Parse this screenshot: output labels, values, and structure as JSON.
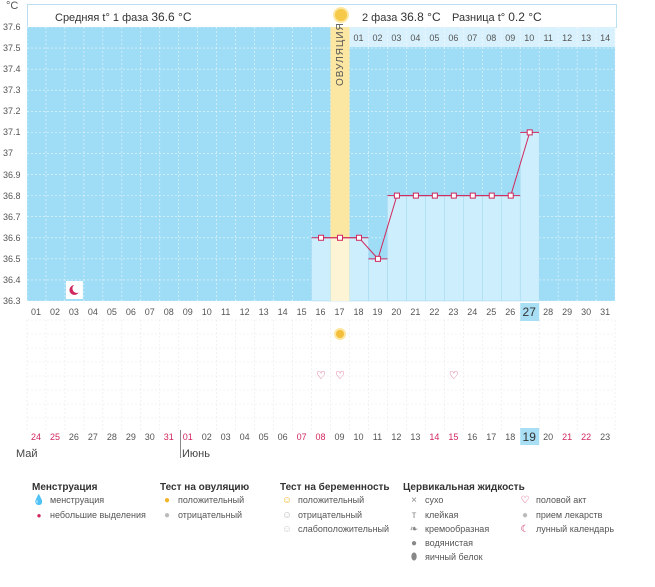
{
  "header": {
    "phase1_label": "Средняя t° 1 фаза",
    "phase1_value": "36.6 °C",
    "phase2_label": "2 фаза",
    "phase2_value": "36.8 °C",
    "diff_label": "Разница t°",
    "diff_value": "0.2 °C"
  },
  "unit": "°C",
  "ovulation_label": "ОВУЛЯЦИЯ",
  "post_ovulation_days": [
    "01",
    "02",
    "03",
    "04",
    "05",
    "06",
    "07",
    "08",
    "09",
    "10",
    "11",
    "12",
    "13",
    "14"
  ],
  "cycle_days": [
    "01",
    "02",
    "03",
    "04",
    "05",
    "06",
    "07",
    "08",
    "09",
    "10",
    "11",
    "12",
    "13",
    "14",
    "15",
    "16",
    "17",
    "18",
    "19",
    "20",
    "21",
    "22",
    "23",
    "24",
    "25",
    "26",
    "27",
    "28",
    "29",
    "30",
    "31"
  ],
  "current_cycle_day": "27",
  "calendar_dates": [
    "24",
    "25",
    "26",
    "27",
    "28",
    "29",
    "30",
    "31",
    "01",
    "02",
    "03",
    "04",
    "05",
    "06",
    "07",
    "08",
    "09",
    "10",
    "11",
    "12",
    "13",
    "14",
    "15",
    "16",
    "17",
    "18",
    "19",
    "20",
    "21",
    "22",
    "23"
  ],
  "calendar_red": [
    0,
    1,
    7,
    8,
    14,
    15,
    21,
    22,
    28,
    29
  ],
  "current_calendar_date": "19",
  "months": {
    "may": "Май",
    "june": "Июнь"
  },
  "colors": {
    "chart_bg": "#9fdcf6",
    "ovulation": "#fbe6a2",
    "filled": "#cdeefc",
    "line": "#d0285c",
    "today": "#a8dff5"
  },
  "chart_data": {
    "type": "line",
    "ylim": [
      36.3,
      37.6
    ],
    "yticks": [
      "36.3",
      "36.4",
      "36.5",
      "36.6",
      "36.7",
      "36.8",
      "36.9",
      "37",
      "37.1",
      "37.2",
      "37.3",
      "37.4",
      "37.5",
      "37.6"
    ],
    "x": [
      16,
      17,
      18,
      19,
      20,
      21,
      22,
      23,
      24,
      25,
      26,
      27
    ],
    "values": [
      36.6,
      36.6,
      36.6,
      36.5,
      36.8,
      36.8,
      36.8,
      36.8,
      36.8,
      36.8,
      36.8,
      37.1
    ],
    "ovulation_day": 17,
    "moon_day": 3
  },
  "markers": {
    "positive_ovulation_test_day": 17,
    "intercourse_days": [
      16,
      17,
      23
    ]
  },
  "legend": {
    "menstruation": {
      "title": "Менструация",
      "items": [
        "менструация",
        "небольшие выделения"
      ]
    },
    "ovulation_test": {
      "title": "Тест на овуляцию",
      "items": [
        "положительный",
        "отрицательный"
      ]
    },
    "pregnancy_test": {
      "title": "Тест на беременность",
      "items": [
        "положительный",
        "отрицательный",
        "слабоположительный"
      ]
    },
    "cervical": {
      "title": "Цервикальная жидкость",
      "items": [
        "сухо",
        "клейкая",
        "кремообразная",
        "водянистая",
        "яичный белок"
      ]
    },
    "other": {
      "items": [
        "половой акт",
        "прием лекарств",
        "лунный календарь"
      ]
    }
  }
}
